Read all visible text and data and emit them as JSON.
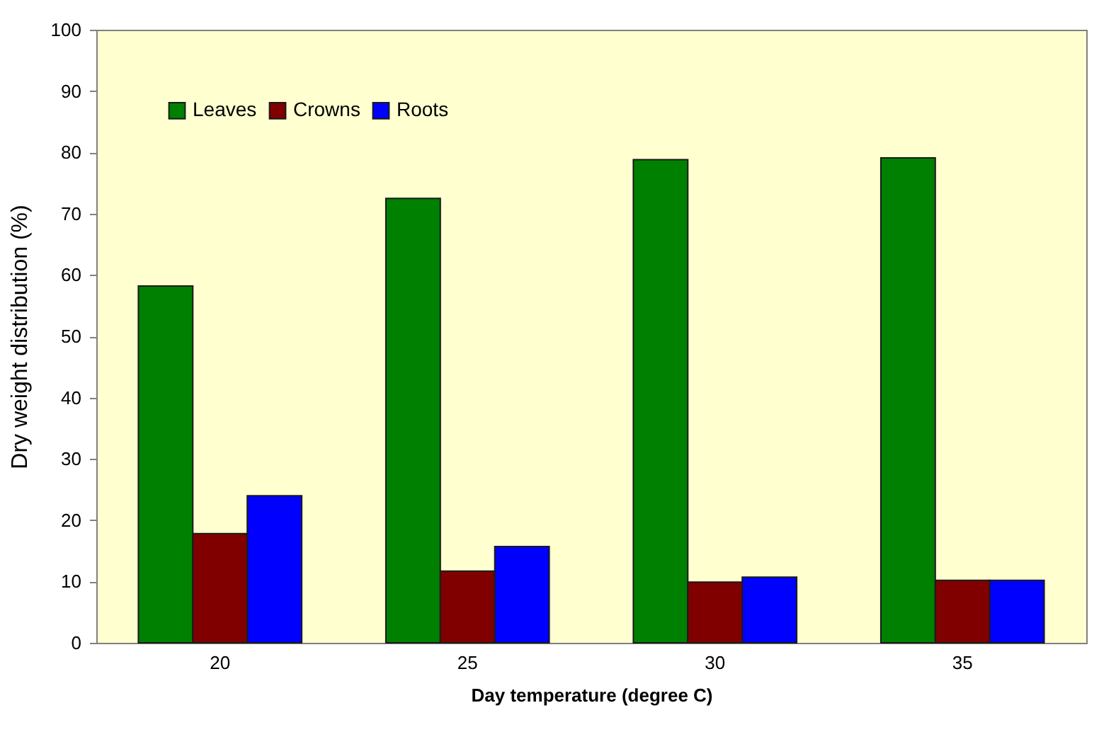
{
  "chart_data": {
    "type": "bar",
    "xlabel": "Day temperature (degree C)",
    "ylabel": "Dry weight distribution (%)",
    "categories": [
      "20",
      "25",
      "30",
      "35"
    ],
    "series": [
      {
        "name": "Leaves",
        "color": "#008000",
        "values": [
          58.2,
          72.5,
          78.8,
          79.1
        ]
      },
      {
        "name": "Crowns",
        "color": "#800000",
        "values": [
          17.8,
          11.7,
          9.9,
          10.2
        ]
      },
      {
        "name": "Roots",
        "color": "#0000ff",
        "values": [
          24.0,
          15.7,
          10.7,
          10.2
        ]
      }
    ],
    "ylim": [
      0,
      100
    ],
    "yticks": [
      0,
      10,
      20,
      30,
      40,
      50,
      60,
      70,
      80,
      90,
      100
    ],
    "grid": false,
    "legend": "top left"
  }
}
